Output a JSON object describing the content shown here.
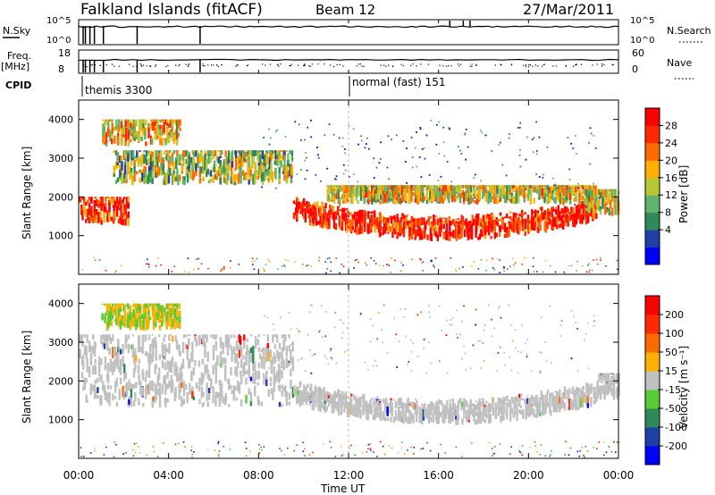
{
  "header": {
    "station": "Falkland Islands (fitACF)",
    "beam": "Beam 12",
    "date": "27/Mar/2011"
  },
  "status_panels": {
    "nsky_label": "N.Sky",
    "nsky_ticks": [
      "10^5",
      "10^0"
    ],
    "nsearch_label": "N.Search",
    "nsearch_ticks": [
      "10^5",
      "10^0"
    ],
    "freq_label": "Freq.",
    "freq_unit": "[MHz]",
    "freq_ticks": [
      "18",
      "8"
    ],
    "nave_label": "Nave",
    "nave_ticks": [
      "60",
      "0"
    ],
    "cpid_label": "CPID",
    "cpid_segments": [
      {
        "name": "themis 3300",
        "start_hour": 0
      },
      {
        "name": "normal (fast) 151",
        "start_hour": 12.0
      }
    ]
  },
  "chart_data": [
    {
      "type": "heatmap",
      "quantity": "Power",
      "ylabel": "Slant Range [km]",
      "ylim": [
        0,
        4500
      ],
      "yticks": [
        "4000",
        "3000",
        "2000",
        "1000"
      ],
      "xlim_hours": [
        0,
        24
      ],
      "colorbar": {
        "label": "Power [dB]",
        "ticks": [
          "28",
          "24",
          "20",
          "16",
          "12",
          "8",
          "4"
        ],
        "colors": [
          "#0000ff",
          "#1e3fa8",
          "#2e8b57",
          "#5fb36a",
          "#b8c832",
          "#ffb000",
          "#ff6a00",
          "#ff2a00",
          "#ff0000"
        ]
      },
      "echo_features": [
        {
          "t0": 1.0,
          "t1": 4.5,
          "range_low": 3300,
          "range_high": 4000,
          "level": 0.6
        },
        {
          "t0": 0.0,
          "t1": 2.2,
          "range_low": 1250,
          "range_high": 2000,
          "level": 0.85
        },
        {
          "t0": 1.5,
          "t1": 9.5,
          "range_low": 2300,
          "range_high": 3200,
          "level": 0.45
        },
        {
          "t0": 9.5,
          "t1": 23.0,
          "range_low": 850,
          "range_high": 1500,
          "level": 0.9
        },
        {
          "t0": 11.0,
          "t1": 23.0,
          "range_low": 1800,
          "range_high": 2300,
          "level": 0.55
        },
        {
          "t0": 22.5,
          "t1": 24.0,
          "range_low": 1500,
          "range_high": 2200,
          "level": 0.5
        }
      ]
    },
    {
      "type": "heatmap",
      "quantity": "Velocity",
      "ylabel": "Slant Range [km]",
      "ylim": [
        0,
        4500
      ],
      "yticks": [
        "4000",
        "3000",
        "2000",
        "1000"
      ],
      "xlim_hours": [
        0,
        24
      ],
      "colorbar": {
        "label": "Velocity [m s⁻¹]",
        "ticks": [
          "200",
          "100",
          "50",
          "15",
          "-15",
          "-50",
          "-100",
          "-200"
        ],
        "colors": [
          "#0000ff",
          "#1e3fa8",
          "#2e8b57",
          "#55cc33",
          "#c0c0c0",
          "#ffb000",
          "#ff6a00",
          "#ff2a00",
          "#ff0000"
        ]
      },
      "ground_scatter_color": "#c0c0c0",
      "echo_features": [
        {
          "t0": 1.0,
          "t1": 4.5,
          "range_low": 3300,
          "range_high": 4000,
          "kind": "green-orange"
        },
        {
          "t0": 0.0,
          "t1": 9.5,
          "range_low": 1300,
          "range_high": 3200,
          "kind": "ground"
        },
        {
          "t0": 9.5,
          "t1": 23.0,
          "range_low": 850,
          "range_high": 2000,
          "kind": "ground"
        },
        {
          "t0": 23.0,
          "t1": 24.0,
          "range_low": 1500,
          "range_high": 2200,
          "kind": "ground"
        }
      ]
    }
  ],
  "xaxis": {
    "label": "Time UT",
    "ticks": [
      "00:00",
      "04:00",
      "08:00",
      "12:00",
      "16:00",
      "20:00",
      "00:00"
    ]
  }
}
